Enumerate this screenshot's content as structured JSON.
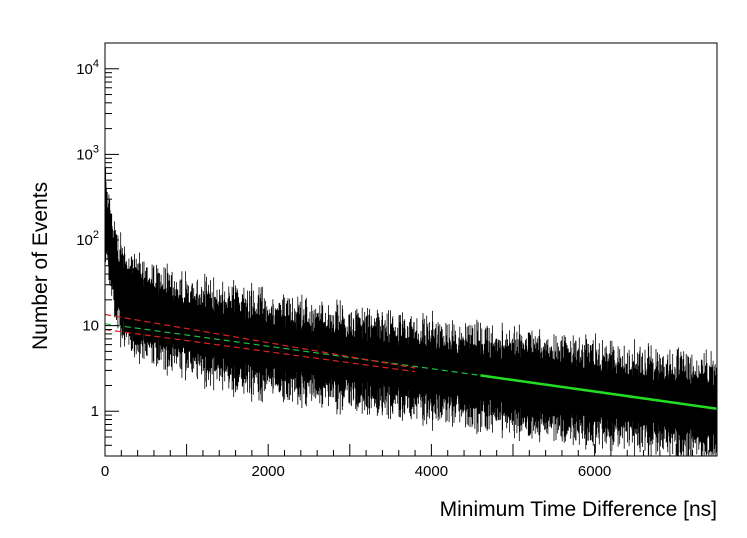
{
  "chart_data": {
    "type": "line",
    "title": "",
    "xlabel": "Minimum Time Difference [ns]",
    "ylabel": "Number of Events",
    "xlim": [
      0,
      7500
    ],
    "ylim": [
      0.3,
      20000
    ],
    "ylog": true,
    "grid": false,
    "x_ticks": [
      {
        "value": 0,
        "label": "0"
      },
      {
        "value": 2000,
        "label": "2000"
      },
      {
        "value": 4000,
        "label": "4000"
      },
      {
        "value": 6000,
        "label": "6000"
      }
    ],
    "y_ticks": [
      {
        "value": 1,
        "label": "1"
      },
      {
        "value": 10,
        "label": "10"
      },
      {
        "value": 100,
        "base": "10",
        "exp": "2"
      },
      {
        "value": 1000,
        "base": "10",
        "exp": "3"
      },
      {
        "value": 10000,
        "base": "10",
        "exp": "4"
      }
    ],
    "histogram": {
      "color": "#000000",
      "bin_width": 5,
      "model": {
        "fast_amp": 200,
        "fast_tau": 55,
        "mid_amp": 16,
        "mid_tau": 550,
        "slow_amp": 10.5,
        "slow_tau": 3300,
        "step": 0.6
      }
    },
    "fits": [
      {
        "style": "solid",
        "color": "#22dd22",
        "x": [
          4600,
          7500
        ],
        "y": [
          2.62,
          1.07
        ]
      },
      {
        "style": "dashed",
        "color": "#22bb44",
        "x": [
          0,
          4600
        ],
        "y": [
          10.5,
          2.62
        ]
      },
      {
        "style": "dashed",
        "color": "#e02020",
        "x": [
          0,
          3800
        ],
        "y": [
          13.5,
          3.2
        ]
      },
      {
        "style": "dashed",
        "color": "#e02020",
        "x": [
          0,
          3800
        ],
        "y": [
          9.0,
          2.9
        ]
      }
    ]
  }
}
